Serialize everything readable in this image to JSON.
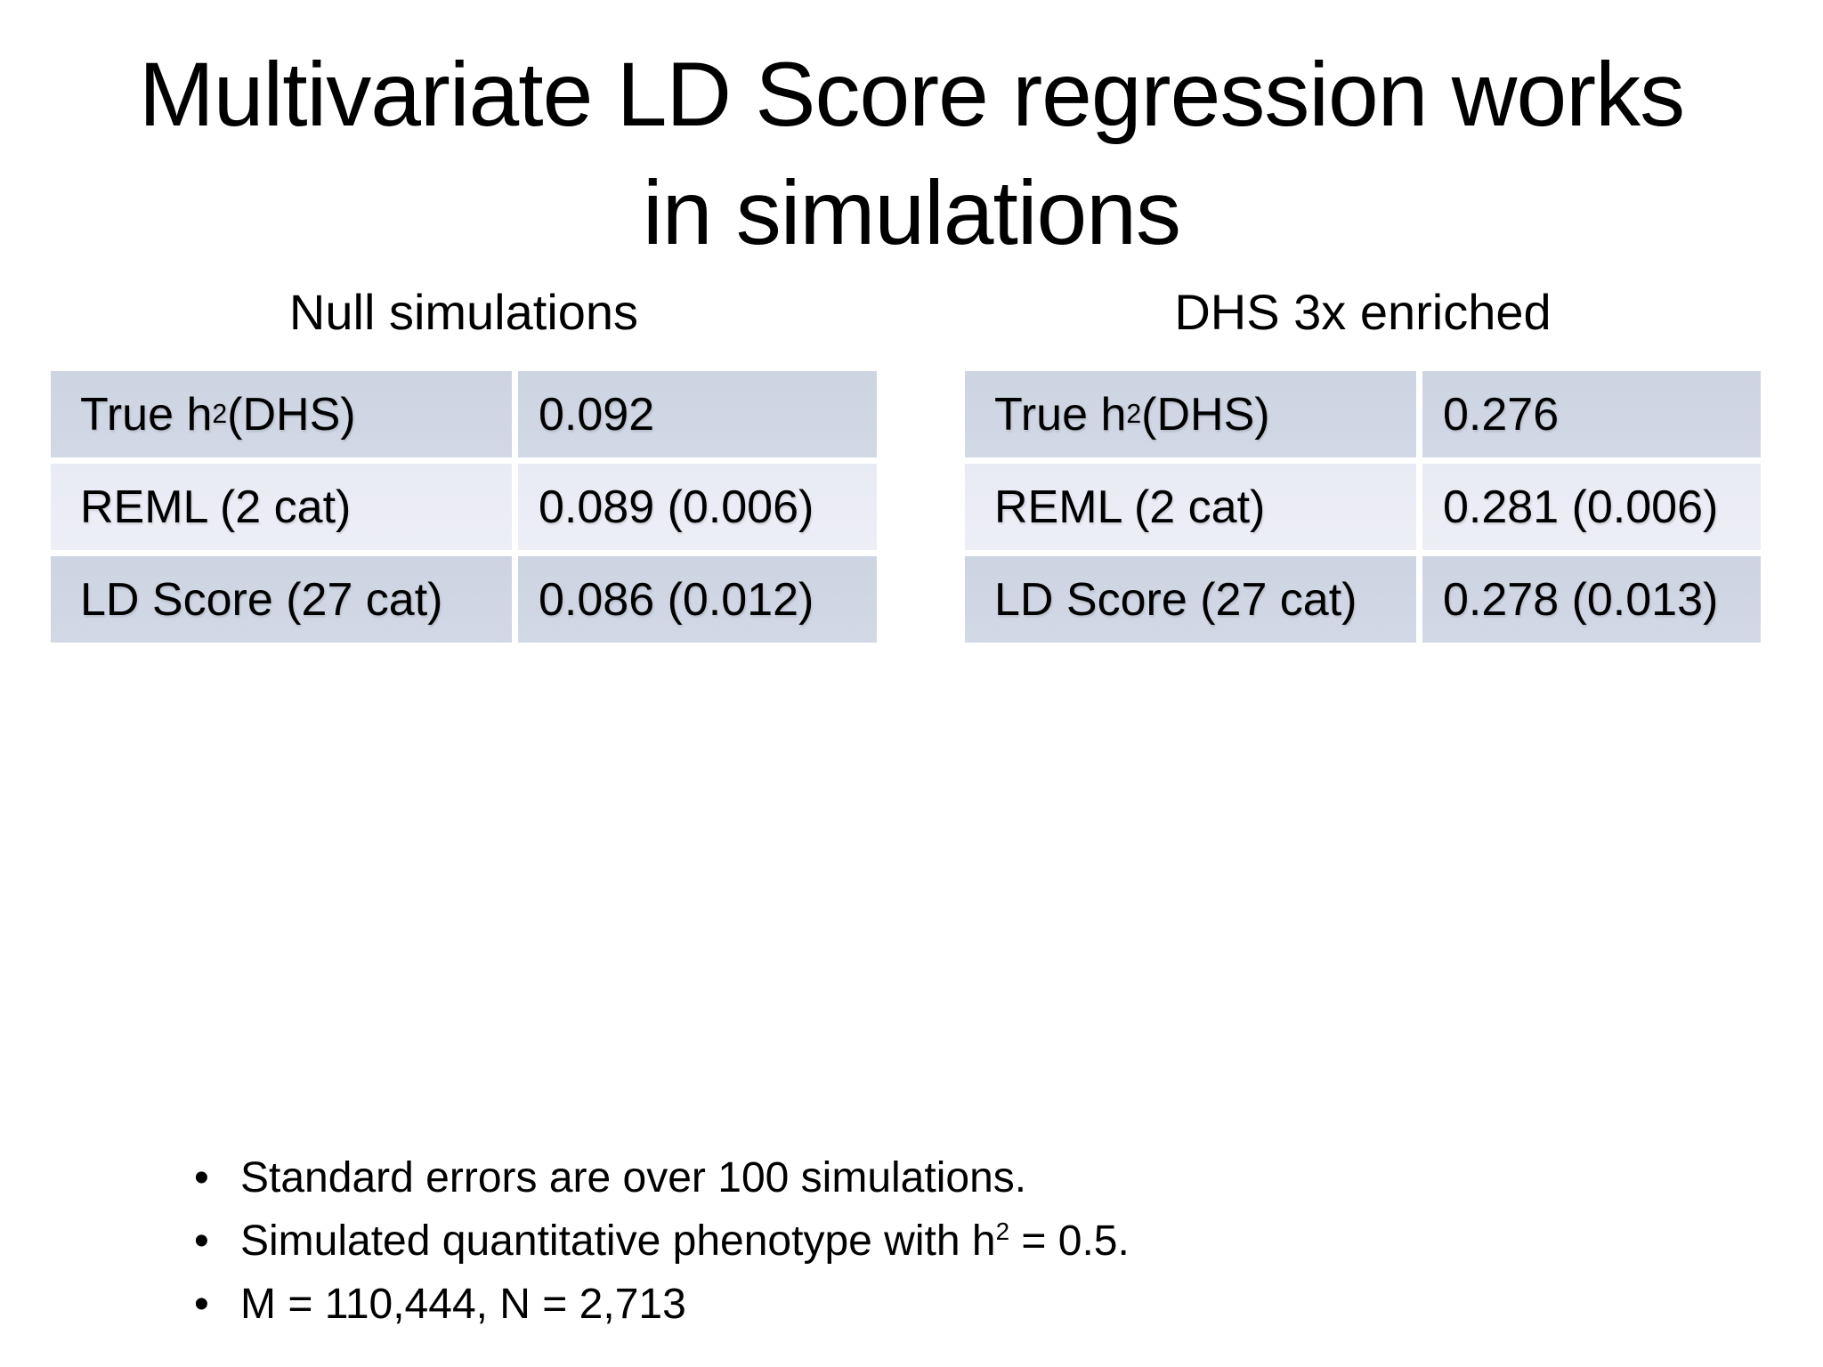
{
  "title": {
    "line1": "Multivariate LD Score regression works",
    "line2": "in simulations"
  },
  "tables": [
    {
      "heading": "Null simulations",
      "rows": [
        {
          "label_pre": "True h",
          "label_sup": "2",
          "label_post": "(DHS)",
          "value": "0.092"
        },
        {
          "label_pre": "REML (2 cat)",
          "label_sup": "",
          "label_post": "",
          "value": "0.089 (0.006)"
        },
        {
          "label_pre": "LD Score (27 cat)",
          "label_sup": "",
          "label_post": "",
          "value": "0.086 (0.012)"
        }
      ]
    },
    {
      "heading": "DHS 3x enriched",
      "rows": [
        {
          "label_pre": "True h",
          "label_sup": "2",
          "label_post": "(DHS)",
          "value": "0.276"
        },
        {
          "label_pre": "REML (2 cat)",
          "label_sup": "",
          "label_post": "",
          "value": "0.281 (0.006)"
        },
        {
          "label_pre": "LD Score (27 cat)",
          "label_sup": "",
          "label_post": "",
          "value": "0.278 (0.013)"
        }
      ]
    }
  ],
  "bullet_list": {
    "glyph": "•",
    "items": [
      {
        "pre": "Standard errors are over 100 simulations.",
        "sup": "",
        "post": ""
      },
      {
        "pre": "Simulated quantitative phenotype with h",
        "sup": "2",
        "post": " = 0.5."
      },
      {
        "pre": "M = 110,444, N = 2,713",
        "sup": "",
        "post": ""
      }
    ]
  },
  "colors": {
    "background": "#ffffff",
    "text": "#000000",
    "table_row_dark": "#cdd4e2",
    "table_row_dark_bottom": "#d2d8e5",
    "table_row_light": "#e9ebf4",
    "table_row_light_bottom": "#edeef6",
    "divider": "#ffffff"
  }
}
